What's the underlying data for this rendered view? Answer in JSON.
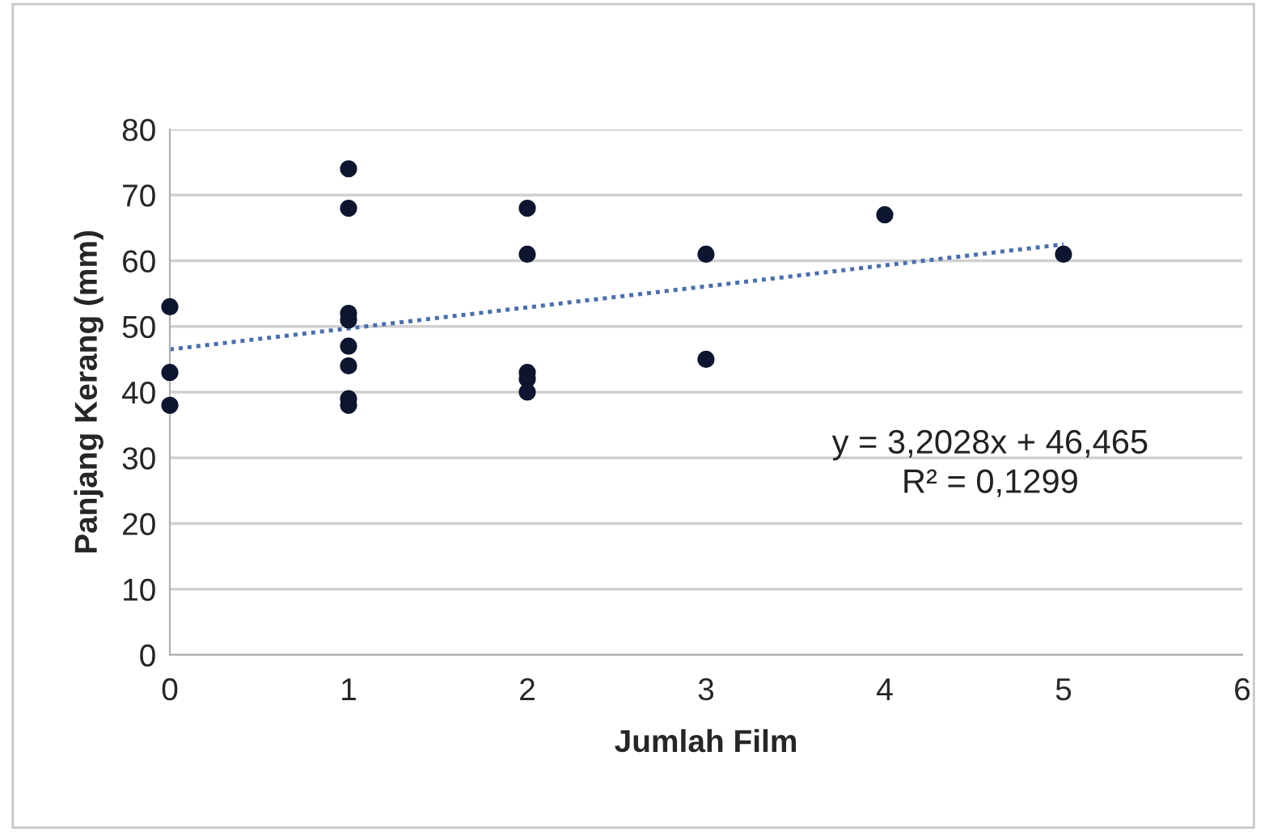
{
  "chart_data": {
    "type": "scatter",
    "xlabel": "Jumlah Film",
    "ylabel": "Panjang Kerang (mm)",
    "series": [
      {
        "color": "#0d1530",
        "x": [
          0,
          0,
          0,
          1,
          1,
          1,
          1,
          1,
          1,
          1,
          1,
          2,
          2,
          2,
          2,
          2,
          3,
          3,
          4,
          5
        ],
        "values": [
          53,
          43,
          38,
          74,
          68,
          52,
          51,
          47,
          44,
          39,
          38,
          68,
          61,
          43,
          42,
          40,
          61,
          45,
          67,
          61
        ],
        "marker": "circle"
      },
      {
        "type": "line",
        "color": "#4a6fb0",
        "x": [
          0,
          5
        ],
        "values": [
          46.5,
          62.5
        ],
        "line_style": "dotted"
      }
    ],
    "annotations": [
      "y = 3,2028x + 46,465",
      "R² = 0,1299"
    ],
    "xlim": [
      0,
      6
    ],
    "xticks": [
      0,
      1,
      2,
      3,
      4,
      5,
      6
    ],
    "ylim": [
      0,
      80
    ],
    "yticks": [
      0,
      10,
      20,
      30,
      40,
      50,
      60,
      70,
      80
    ],
    "grid": "y",
    "legend": false
  }
}
